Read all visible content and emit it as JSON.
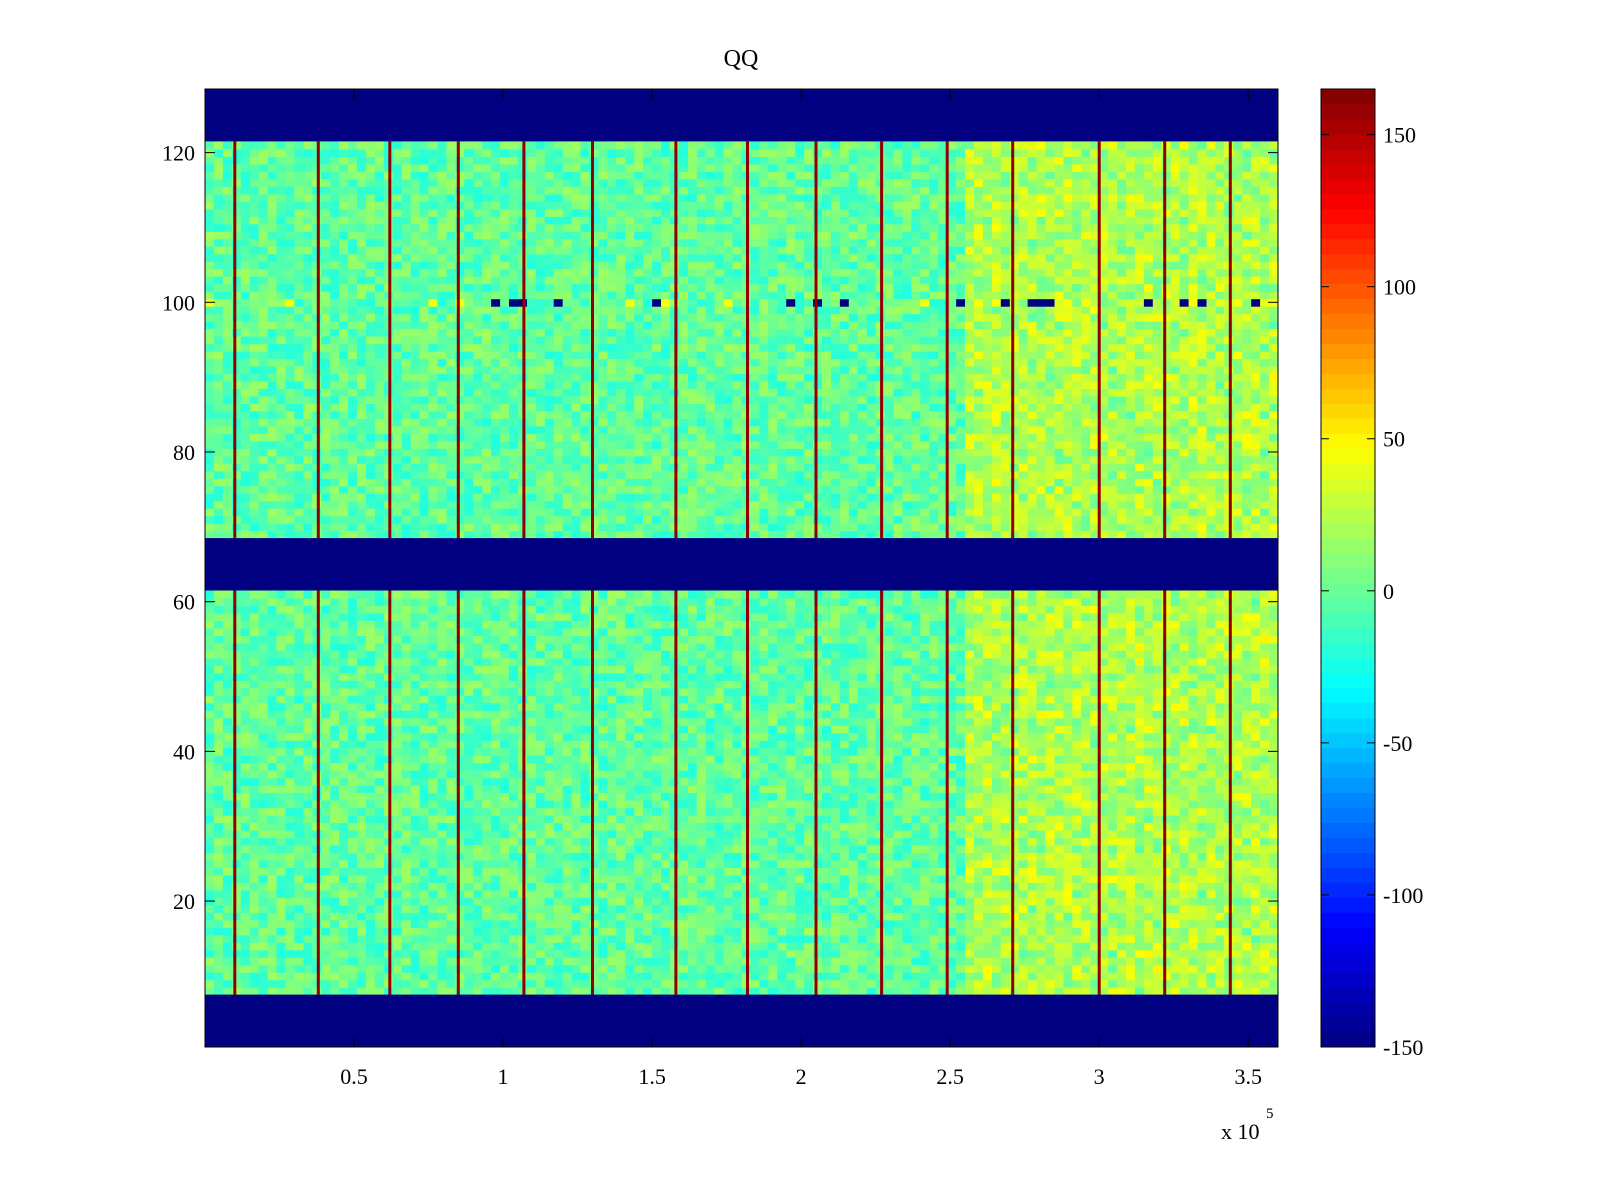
{
  "chart_data": {
    "type": "heatmap",
    "title": "QQ",
    "xlabel": "",
    "ylabel": "",
    "x_exponent_label": "x 10",
    "x_exponent_power": "5",
    "xlim": [
      0,
      360000
    ],
    "ylim": [
      0.5,
      128.5
    ],
    "x_ticks": [
      {
        "value": 50000,
        "label": "0.5"
      },
      {
        "value": 100000,
        "label": "1"
      },
      {
        "value": 150000,
        "label": "1.5"
      },
      {
        "value": 200000,
        "label": "2"
      },
      {
        "value": 250000,
        "label": "2.5"
      },
      {
        "value": 300000,
        "label": "3"
      },
      {
        "value": 350000,
        "label": "3.5"
      }
    ],
    "y_ticks": [
      {
        "value": 20,
        "label": "20"
      },
      {
        "value": 40,
        "label": "40"
      },
      {
        "value": 60,
        "label": "60"
      },
      {
        "value": 80,
        "label": "80"
      },
      {
        "value": 100,
        "label": "100"
      },
      {
        "value": 120,
        "label": "120"
      }
    ],
    "colormap": "jet",
    "clim": [
      -150,
      165
    ],
    "colorbar_ticks": [
      {
        "value": -150,
        "label": "-150"
      },
      {
        "value": -100,
        "label": "-100"
      },
      {
        "value": -50,
        "label": "-50"
      },
      {
        "value": 0,
        "label": "0"
      },
      {
        "value": 50,
        "label": "50"
      },
      {
        "value": 100,
        "label": "100"
      },
      {
        "value": 150,
        "label": "150"
      }
    ],
    "empty_row_bands": [
      [
        0.5,
        7.5
      ],
      [
        61.5,
        68.5
      ],
      [
        121.5,
        128.5
      ]
    ],
    "empty_band_value": -150,
    "data_row_bands": [
      [
        7.5,
        61.5
      ],
      [
        68.5,
        121.5
      ]
    ],
    "background_value": 0,
    "vertical_stripes_x": [
      10000,
      38000,
      62000,
      85000,
      107000,
      130000,
      158000,
      182000,
      205000,
      227000,
      249000,
      271000,
      300000,
      322000,
      344000
    ],
    "stripe_value": 160,
    "warm_region": {
      "x_from": 255000,
      "x_to": 360000,
      "value": 30
    },
    "noisy_row": {
      "y": 100,
      "value_min": -150,
      "value_max": 150
    },
    "grid": false,
    "legend": "none"
  }
}
